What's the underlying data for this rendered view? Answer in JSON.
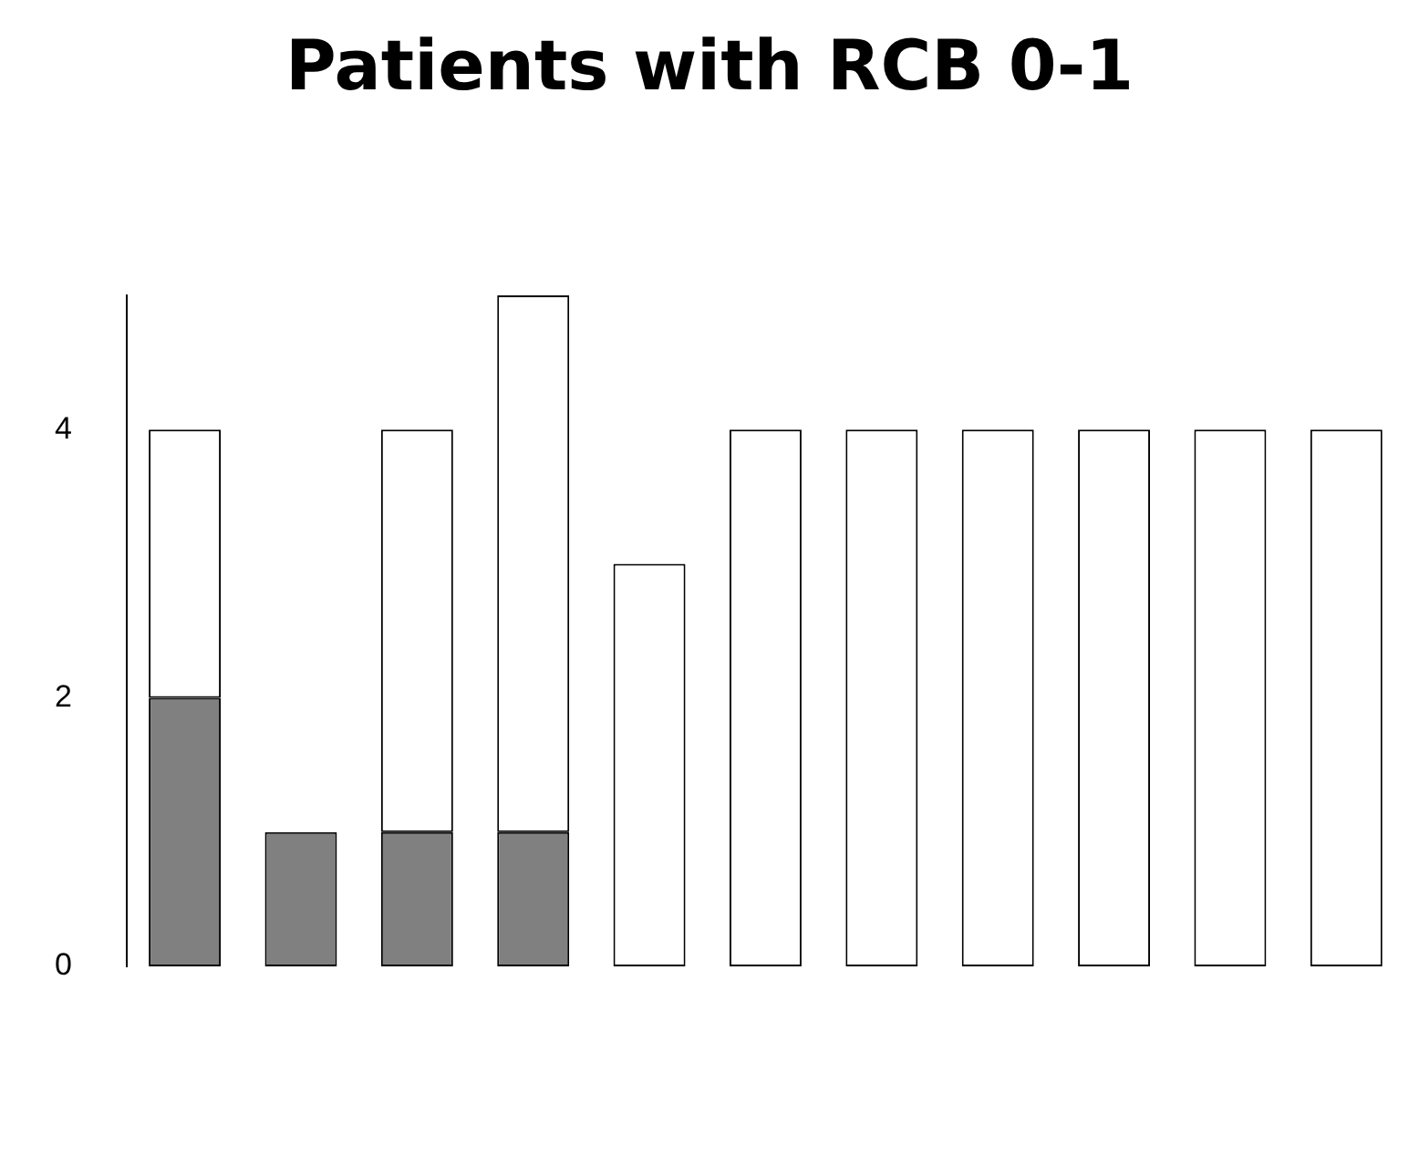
{
  "chart_data": {
    "type": "bar",
    "title": "Patients with RCB 0-1",
    "stacked": true,
    "categories": [
      null,
      null,
      null,
      null,
      null,
      null,
      null,
      null,
      null,
      null,
      null
    ],
    "series": [
      {
        "color": "#808080",
        "values": [
          2,
          1,
          1,
          1,
          null,
          null,
          null,
          null,
          null,
          null,
          null
        ]
      },
      {
        "color": "#ffffff",
        "values": [
          2,
          null,
          3,
          4,
          3,
          4,
          4,
          4,
          4,
          4,
          4
        ]
      }
    ],
    "ylim": [
      0,
      5
    ],
    "yticks": [
      0,
      2,
      4
    ],
    "grid": false,
    "legend": false,
    "tick_labels": "y"
  }
}
